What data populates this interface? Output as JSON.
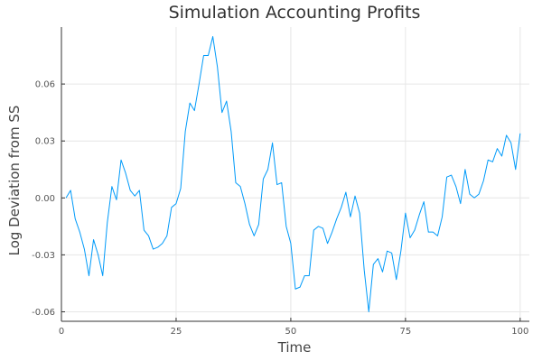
{
  "chart_data": {
    "type": "line",
    "title": "Simulation Accounting Profits",
    "xlabel": "Time",
    "ylabel": "Log Deviation from SS",
    "xlim": [
      0,
      102
    ],
    "ylim": [
      -0.065,
      0.09
    ],
    "x_ticks": [
      0,
      25,
      50,
      75,
      100
    ],
    "x_tick_labels": [
      "0",
      "25",
      "50",
      "75",
      "100"
    ],
    "y_ticks": [
      -0.06,
      -0.03,
      0.0,
      0.03,
      0.06
    ],
    "y_tick_labels": [
      "-0.06",
      "-0.03",
      "0.00",
      "0.03",
      "0.06"
    ],
    "grid": true,
    "legend": "none",
    "series": [
      {
        "color": "#009af9",
        "x": [
          1,
          2,
          3,
          4,
          5,
          6,
          7,
          8,
          9,
          10,
          11,
          12,
          13,
          14,
          15,
          16,
          17,
          18,
          19,
          20,
          21,
          22,
          23,
          24,
          25,
          26,
          27,
          28,
          29,
          30,
          31,
          32,
          33,
          34,
          35,
          36,
          37,
          38,
          39,
          40,
          41,
          42,
          43,
          44,
          45,
          46,
          47,
          48,
          49,
          50,
          51,
          52,
          53,
          54,
          55,
          56,
          57,
          58,
          59,
          60,
          61,
          62,
          63,
          64,
          65,
          66,
          67,
          68,
          69,
          70,
          71,
          72,
          73,
          74,
          75,
          76,
          77,
          78,
          79,
          80,
          81,
          82,
          83,
          84,
          85,
          86,
          87,
          88,
          89,
          90,
          91,
          92,
          93,
          94,
          95,
          96,
          97,
          98,
          99,
          100
        ],
        "y": [
          0.0,
          0.004,
          -0.011,
          -0.018,
          -0.027,
          -0.041,
          -0.022,
          -0.03,
          -0.041,
          -0.013,
          0.006,
          -0.001,
          0.02,
          0.013,
          0.004,
          0.001,
          0.004,
          -0.017,
          -0.02,
          -0.027,
          -0.026,
          -0.024,
          -0.02,
          -0.005,
          -0.003,
          0.005,
          0.035,
          0.05,
          0.046,
          0.06,
          0.075,
          0.075,
          0.085,
          0.069,
          0.045,
          0.051,
          0.035,
          0.008,
          0.006,
          -0.003,
          -0.014,
          -0.02,
          -0.014,
          0.01,
          0.015,
          0.029,
          0.007,
          0.008,
          -0.015,
          -0.024,
          -0.048,
          -0.047,
          -0.041,
          -0.041,
          -0.017,
          -0.015,
          -0.016,
          -0.024,
          -0.018,
          -0.011,
          -0.005,
          0.003,
          -0.01,
          0.001,
          -0.008,
          -0.038,
          -0.06,
          -0.035,
          -0.032,
          -0.039,
          -0.028,
          -0.029,
          -0.043,
          -0.028,
          -0.008,
          -0.021,
          -0.017,
          -0.009,
          -0.002,
          -0.018,
          -0.018,
          -0.02,
          -0.01,
          0.011,
          0.012,
          0.006,
          -0.003,
          0.015,
          0.002,
          0.0,
          0.002,
          0.009,
          0.02,
          0.019,
          0.026,
          0.022,
          0.033,
          0.029,
          0.015,
          0.034
        ]
      }
    ]
  }
}
